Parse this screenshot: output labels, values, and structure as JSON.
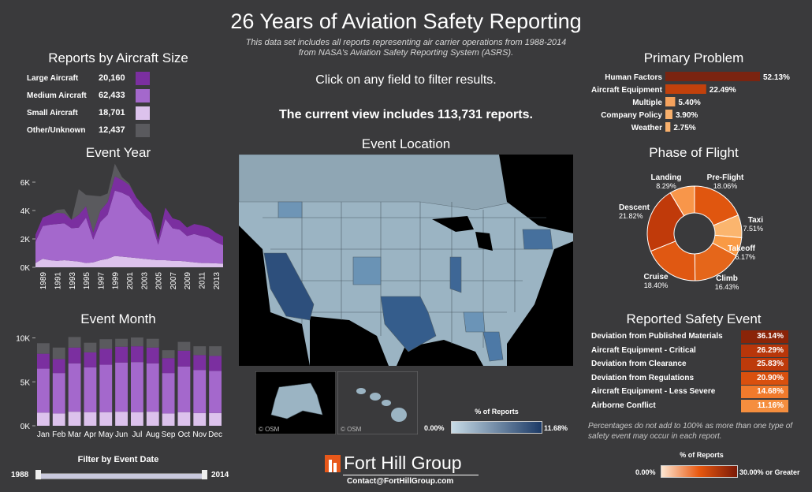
{
  "header": {
    "title": "26 Years of Aviation Safety Reporting",
    "subtitle": "This data set includes all reports representing air carrier operations from 1988-2014 from NASA's Aviation Safety Reporting System (ASRS).",
    "instruction": "Click on any field to filter results.",
    "current_view": "The current view includes 113,731 reports."
  },
  "aircraft_size": {
    "title": "Reports by Aircraft Size",
    "rows": [
      {
        "label": "Large Aircraft",
        "value": "20,160",
        "color": "#7b2fa0"
      },
      {
        "label": "Medium Aircraft",
        "value": "62,433",
        "color": "#a468cc"
      },
      {
        "label": "Small Aircraft",
        "value": "18,701",
        "color": "#dcc2ec"
      },
      {
        "label": "Other/Unknown",
        "value": "12,437",
        "color": "#5a5a5e"
      }
    ]
  },
  "event_year": {
    "title": "Event Year"
  },
  "event_month": {
    "title": "Event Month"
  },
  "filter": {
    "title": "Filter by Event Date",
    "start": "1988",
    "end": "2014",
    "range_fraction": [
      0,
      1
    ]
  },
  "map": {
    "title": "Event Location",
    "legend_title": "% of Reports",
    "min": "0.00%",
    "max": "11.68%",
    "osm1": "© OSM",
    "osm2": "© OSM"
  },
  "primary_problem": {
    "title": "Primary Problem"
  },
  "phase_of_flight": {
    "title": "Phase of Flight"
  },
  "safety_event": {
    "title": "Reported Safety Event",
    "note": "Percentages do not add to 100% as more than one type of safety event may occur in each report.",
    "legend_title": "% of Reports",
    "legend_min": "0.00%",
    "legend_max": "30.00% or Greater"
  },
  "footer": {
    "brand": "Fort Hill Group",
    "contact": "Contact@FortHillGroup.com"
  },
  "chart_data": [
    {
      "type": "area",
      "id": "event_year",
      "title": "Event Year",
      "x": [
        1988,
        1989,
        1990,
        1991,
        1992,
        1993,
        1994,
        1995,
        1996,
        1997,
        1998,
        1999,
        2000,
        2001,
        2002,
        2003,
        2004,
        2005,
        2006,
        2007,
        2008,
        2009,
        2010,
        2011,
        2012,
        2013,
        2014
      ],
      "series": [
        {
          "name": "Small Aircraft",
          "values": [
            300,
            600,
            500,
            450,
            500,
            450,
            400,
            300,
            350,
            500,
            600,
            800,
            750,
            700,
            650,
            600,
            550,
            500,
            500,
            450,
            450,
            400,
            350,
            300,
            300,
            280,
            260
          ]
        },
        {
          "name": "Medium Aircraft",
          "values": [
            1500,
            2300,
            2500,
            2600,
            2600,
            2300,
            2400,
            3200,
            1600,
            2700,
            3100,
            4600,
            4500,
            4300,
            3600,
            3100,
            2700,
            1100,
            2900,
            2300,
            2200,
            1800,
            2000,
            1900,
            1800,
            1500,
            1300
          ]
        },
        {
          "name": "Large Aircraft",
          "values": [
            500,
            600,
            700,
            800,
            700,
            600,
            900,
            800,
            500,
            800,
            900,
            1000,
            900,
            800,
            650,
            600,
            550,
            350,
            800,
            700,
            650,
            600,
            700,
            750,
            700,
            650,
            600
          ]
        },
        {
          "name": "Other/Unknown",
          "values": [
            0,
            0,
            0,
            200,
            300,
            0,
            1800,
            800,
            2600,
            1000,
            600,
            900,
            200,
            100,
            0,
            0,
            0,
            0,
            0,
            0,
            0,
            0,
            0,
            0,
            0,
            0,
            0
          ]
        }
      ],
      "ticks_x": [
        "1989",
        "1991",
        "1993",
        "1995",
        "1997",
        "1999",
        "2001",
        "2003",
        "2005",
        "2007",
        "2009",
        "2011",
        "2013"
      ],
      "ticks_y": [
        "0K",
        "2K",
        "4K",
        "6K"
      ],
      "ylim": [
        0,
        7000
      ]
    },
    {
      "type": "bar",
      "id": "event_month",
      "title": "Event Month",
      "categories": [
        "Jan",
        "Feb",
        "Mar",
        "Apr",
        "May",
        "Jun",
        "Jul",
        "Aug",
        "Sep",
        "Oct",
        "Nov",
        "Dec"
      ],
      "series": [
        {
          "name": "Small Aircraft",
          "values": [
            1500,
            1400,
            1600,
            1550,
            1550,
            1600,
            1550,
            1600,
            1400,
            1550,
            1450,
            1450
          ]
        },
        {
          "name": "Medium Aircraft",
          "values": [
            5000,
            4600,
            5500,
            5100,
            5400,
            5600,
            5700,
            5500,
            4600,
            5200,
            4900,
            4800
          ]
        },
        {
          "name": "Large Aircraft",
          "values": [
            1700,
            1600,
            1800,
            1700,
            1800,
            1800,
            1800,
            1800,
            1700,
            1800,
            1700,
            1700
          ]
        },
        {
          "name": "Other/Unknown",
          "values": [
            1200,
            1300,
            1200,
            1100,
            1100,
            900,
            1000,
            1000,
            900,
            1000,
            1000,
            1100
          ]
        }
      ],
      "ticks_y": [
        "0K",
        "5K",
        "10K"
      ],
      "ylim": [
        0,
        10500
      ]
    },
    {
      "type": "bar",
      "id": "primary_problem",
      "title": "Primary Problem",
      "categories": [
        "Human Factors",
        "Aircraft Equipment",
        "Multiple",
        "Company Policy",
        "Weather"
      ],
      "values": [
        52.13,
        22.49,
        5.4,
        3.9,
        2.75
      ],
      "labels": [
        "52.13%",
        "22.49%",
        "5.40%",
        "3.90%",
        "2.75%"
      ]
    },
    {
      "type": "pie",
      "id": "phase_of_flight",
      "title": "Phase of Flight",
      "categories": [
        "Pre-Flight",
        "Taxi",
        "Takeoff",
        "Climb",
        "Cruise",
        "Descent",
        "Landing"
      ],
      "values": [
        18.06,
        7.51,
        6.17,
        16.43,
        18.4,
        21.82,
        8.29
      ],
      "labels": [
        "18.06%",
        "7.51%",
        "6.17%",
        "16.43%",
        "18.40%",
        "21.82%",
        "8.29%"
      ]
    },
    {
      "type": "table",
      "id": "safety_event",
      "title": "Reported Safety Event",
      "categories": [
        "Deviation from Published Materials",
        "Aircraft Equipment - Critical",
        "Deviation from Clearance",
        "Deviation from Regulations",
        "Aircraft Equipment - Less Severe",
        "Airborne Conflict"
      ],
      "values": [
        36.14,
        26.29,
        25.83,
        20.9,
        14.68,
        11.16
      ],
      "labels": [
        "36.14%",
        "26.29%",
        "25.83%",
        "20.90%",
        "14.68%",
        "11.16%"
      ]
    }
  ]
}
